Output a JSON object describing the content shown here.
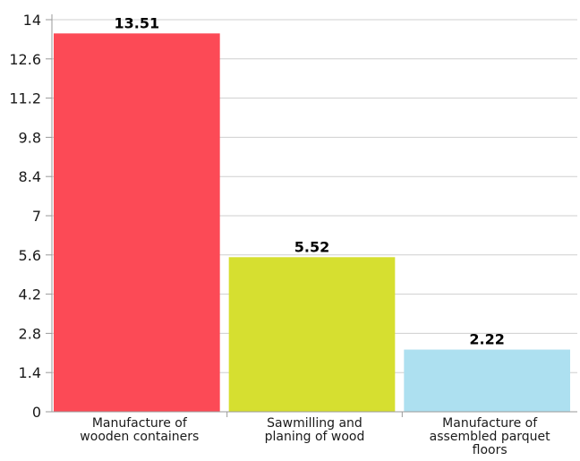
{
  "chart_data": {
    "type": "bar",
    "categories": [
      [
        "Manufacture of",
        "wooden containers"
      ],
      [
        "Sawmilling and",
        "planing of wood"
      ],
      [
        "Manufacture of",
        "assembled parquet",
        "floors"
      ]
    ],
    "values": [
      13.51,
      5.52,
      2.22
    ],
    "value_labels": [
      "13.51",
      "5.52",
      "2.22"
    ],
    "colors": [
      "#fc4a56",
      "#d6df30",
      "#ade0f0"
    ],
    "ylim": [
      0,
      14
    ],
    "y_ticks": [
      "0",
      "1.4",
      "2.8",
      "4.2",
      "5.6",
      "7",
      "8.4",
      "9.8",
      "11.2",
      "12.6",
      "14"
    ],
    "y_tick_values": [
      0,
      1.4,
      2.8,
      4.2,
      5.6,
      7,
      8.4,
      9.8,
      11.2,
      12.6,
      14
    ],
    "grid": true,
    "legend": "none",
    "title": "",
    "xlabel": "",
    "ylabel": ""
  }
}
